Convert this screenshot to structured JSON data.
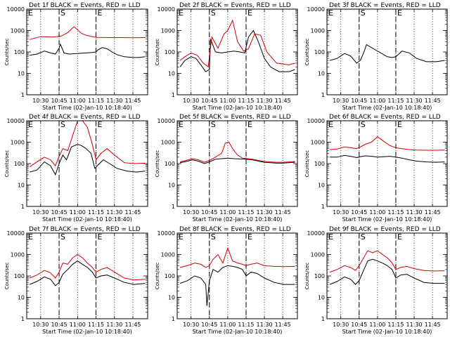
{
  "shared": {
    "xlabel": "Start Time (02-Jan-10 10:18:40)",
    "ylabel": "Counts/sec",
    "x_tick_labels": [
      "10:30",
      "10:45",
      "11:00",
      "11:15",
      "11:30",
      "11:45"
    ],
    "y_tick_labels": [
      "1",
      "10",
      "100",
      "1000",
      "10000"
    ],
    "marker_S": "S",
    "marker_E": "E",
    "series_colors": {
      "events": "#000000",
      "lld": "#d40000"
    }
  },
  "chart_data": [
    {
      "type": "line",
      "title": "Det 1f BLACK = Events, RED = LLD",
      "xlim": [
        "10:18:40",
        "11:57:00"
      ],
      "ylim": [
        1,
        10000
      ],
      "yscale": "log",
      "markers": {
        "S": "10:45",
        "E": "11:15"
      },
      "series": [
        {
          "color": "#000000",
          "x": [
            "10:21",
            "10:27",
            "10:33",
            "10:38",
            "10:42",
            "10:45",
            "10:46",
            "10:49",
            "10:53",
            "11:00",
            "11:07",
            "11:12",
            "11:15",
            "11:17",
            "11:20",
            "11:24",
            "11:28",
            "11:32",
            "11:38",
            "11:45",
            "11:50",
            "11:55"
          ],
          "values": [
            70,
            80,
            110,
            90,
            80,
            150,
            230,
            90,
            80,
            85,
            90,
            95,
            100,
            130,
            160,
            140,
            100,
            75,
            60,
            55,
            55,
            60
          ]
        },
        {
          "color": "#d40000",
          "x": [
            "10:21",
            "10:30",
            "10:40",
            "10:45",
            "10:47",
            "10:52",
            "10:57",
            "11:00",
            "11:03",
            "11:07",
            "11:12",
            "11:16",
            "11:25",
            "11:35",
            "11:45",
            "11:55"
          ],
          "values": [
            380,
            520,
            500,
            540,
            560,
            800,
            1500,
            1100,
            750,
            600,
            520,
            480,
            470,
            470,
            460,
            470
          ]
        }
      ]
    },
    {
      "type": "line",
      "title": "Det 2f BLACK = Events, RED = LLD",
      "xlim": [
        "10:18:40",
        "11:57:00"
      ],
      "ylim": [
        1,
        10000
      ],
      "yscale": "log",
      "markers": {
        "S": "10:45",
        "E": "11:15"
      },
      "series": [
        {
          "color": "#000000",
          "x": [
            "10:21",
            "10:25",
            "10:30",
            "10:34",
            "10:38",
            "10:42",
            "10:45",
            "10:46",
            "10:50",
            "10:55",
            "11:00",
            "11:05",
            "11:10",
            "11:14",
            "11:17",
            "11:21",
            "11:25",
            "11:30",
            "11:35",
            "11:42",
            "11:50",
            "11:55"
          ],
          "values": [
            20,
            40,
            60,
            50,
            25,
            12,
            15,
            400,
            100,
            90,
            100,
            110,
            100,
            90,
            500,
            1000,
            300,
            50,
            20,
            12,
            12,
            15
          ]
        },
        {
          "color": "#d40000",
          "x": [
            "10:21",
            "10:25",
            "10:30",
            "10:35",
            "10:40",
            "10:44",
            "10:47",
            "10:52",
            "10:57",
            "11:00",
            "11:04",
            "11:08",
            "11:13",
            "11:17",
            "11:22",
            "11:27",
            "11:32",
            "11:40",
            "11:50",
            "11:55"
          ],
          "values": [
            40,
            60,
            90,
            70,
            30,
            20,
            500,
            150,
            700,
            1000,
            3000,
            300,
            110,
            140,
            700,
            600,
            100,
            30,
            25,
            30
          ]
        }
      ]
    },
    {
      "type": "line",
      "title": "Det 3f BLACK = Events, RED = LLD",
      "xlim": [
        "10:18:40",
        "11:57:00"
      ],
      "ylim": [
        1,
        10000
      ],
      "yscale": "log",
      "markers": {
        "S": "10:45",
        "E": "11:15"
      },
      "series": [
        {
          "color": "#000000",
          "x": [
            "10:21",
            "10:27",
            "10:33",
            "10:38",
            "10:43",
            "10:46",
            "10:49",
            "10:51",
            "11:08",
            "11:12",
            "11:15",
            "11:20",
            "11:26",
            "11:32",
            "11:40",
            "11:48",
            "11:55"
          ],
          "values": [
            40,
            50,
            85,
            65,
            30,
            40,
            100,
            220,
            60,
            55,
            60,
            110,
            90,
            50,
            35,
            35,
            40
          ]
        }
      ]
    },
    {
      "type": "line",
      "title": "Det 4f BLACK = Events, RED = LLD",
      "xlim": [
        "10:18:40",
        "11:57:00"
      ],
      "ylim": [
        1,
        10000
      ],
      "yscale": "log",
      "markers": {
        "S": "10:45",
        "E": "11:15"
      },
      "series": [
        {
          "color": "#000000",
          "x": [
            "10:21",
            "10:27",
            "10:33",
            "10:38",
            "10:42",
            "10:45",
            "10:48",
            "10:51",
            "10:55",
            "11:00",
            "11:03",
            "11:07",
            "11:11",
            "11:14",
            "11:17",
            "11:21",
            "11:26",
            "11:32",
            "11:40",
            "11:48",
            "11:55"
          ],
          "values": [
            40,
            50,
            120,
            80,
            30,
            100,
            250,
            150,
            600,
            800,
            700,
            500,
            300,
            60,
            90,
            150,
            100,
            60,
            45,
            40,
            45
          ]
        },
        {
          "color": "#d40000",
          "x": [
            "10:21",
            "10:27",
            "10:33",
            "10:38",
            "10:42",
            "10:45",
            "10:48",
            "10:52",
            "10:56",
            "11:00",
            "11:04",
            "11:08",
            "11:12",
            "11:15",
            "11:19",
            "11:24",
            "11:30",
            "11:38",
            "11:46",
            "11:55"
          ],
          "values": [
            70,
            120,
            200,
            150,
            80,
            220,
            500,
            400,
            2000,
            10000,
            10000,
            5000,
            800,
            150,
            300,
            500,
            250,
            110,
            100,
            105
          ]
        }
      ]
    },
    {
      "type": "line",
      "title": "Det 5f BLACK = Events, RED = LLD",
      "xlim": [
        "10:18:40",
        "11:57:00"
      ],
      "ylim": [
        1,
        10000
      ],
      "yscale": "log",
      "markers": {
        "S": "10:45",
        "E": "11:15"
      },
      "series": [
        {
          "color": "#000000",
          "x": [
            "10:21",
            "10:26",
            "10:31",
            "10:36",
            "10:41",
            "10:45",
            "10:50",
            "10:55",
            "11:00",
            "11:05",
            "11:10",
            "11:15",
            "11:20",
            "11:25",
            "11:30",
            "11:35",
            "11:40",
            "11:45",
            "11:50",
            "11:55"
          ],
          "values": [
            110,
            125,
            150,
            130,
            100,
            120,
            160,
            170,
            180,
            170,
            165,
            160,
            150,
            130,
            115,
            110,
            105,
            105,
            110,
            115
          ]
        },
        {
          "color": "#d40000",
          "x": [
            "10:21",
            "10:26",
            "10:31",
            "10:36",
            "10:41",
            "10:45",
            "10:50",
            "10:55",
            "10:58",
            "11:01",
            "11:04",
            "11:08",
            "11:12",
            "11:16",
            "11:20",
            "11:25",
            "11:30",
            "11:35",
            "11:40",
            "11:45",
            "11:50",
            "11:55"
          ],
          "values": [
            120,
            140,
            170,
            150,
            115,
            140,
            200,
            300,
            900,
            1000,
            500,
            250,
            180,
            170,
            160,
            140,
            125,
            120,
            115,
            115,
            120,
            125
          ]
        }
      ]
    },
    {
      "type": "line",
      "title": "Det 6f BLACK = Events, RED = LLD",
      "xlim": [
        "10:18:40",
        "11:57:00"
      ],
      "ylim": [
        1,
        10000
      ],
      "yscale": "log",
      "markers": {
        "S": "10:45",
        "E": "11:15"
      },
      "series": [
        {
          "color": "#000000",
          "x": [
            "10:21",
            "10:27",
            "10:33",
            "10:38",
            "10:43",
            "10:46",
            "10:50",
            "10:55",
            "11:00",
            "11:05",
            "11:10",
            "11:15",
            "11:20",
            "11:26",
            "11:32",
            "11:40",
            "11:48",
            "11:55"
          ],
          "values": [
            200,
            200,
            240,
            220,
            190,
            210,
            230,
            220,
            200,
            210,
            220,
            200,
            180,
            150,
            130,
            120,
            115,
            120
          ]
        },
        {
          "color": "#d40000",
          "x": [
            "10:21",
            "10:27",
            "10:33",
            "10:38",
            "10:43",
            "10:46",
            "10:50",
            "10:55",
            "11:00",
            "11:05",
            "11:10",
            "11:15",
            "11:20",
            "11:26",
            "11:32",
            "11:40",
            "11:48",
            "11:55"
          ],
          "values": [
            450,
            480,
            600,
            550,
            500,
            600,
            800,
            1000,
            1800,
            1100,
            700,
            550,
            500,
            450,
            430,
            420,
            420,
            430
          ]
        }
      ]
    },
    {
      "type": "line",
      "title": "Det 7f BLACK = Events, RED = LLD",
      "xlim": [
        "10:18:40",
        "11:57:00"
      ],
      "ylim": [
        1,
        10000
      ],
      "yscale": "log",
      "markers": {
        "S": "10:45",
        "E": "11:15"
      },
      "series": [
        {
          "color": "#000000",
          "x": [
            "10:21",
            "10:27",
            "10:33",
            "10:38",
            "10:42",
            "10:45",
            "10:48",
            "10:52",
            "10:56",
            "11:00",
            "11:04",
            "11:08",
            "11:12",
            "11:15",
            "11:19",
            "11:24",
            "11:30",
            "11:38",
            "11:46",
            "11:55"
          ],
          "values": [
            40,
            55,
            90,
            70,
            35,
            50,
            120,
            200,
            350,
            500,
            350,
            250,
            150,
            80,
            100,
            110,
            80,
            50,
            40,
            45
          ]
        },
        {
          "color": "#d40000",
          "x": [
            "10:21",
            "10:27",
            "10:33",
            "10:38",
            "10:42",
            "10:45",
            "10:48",
            "10:52",
            "10:56",
            "11:00",
            "11:04",
            "11:08",
            "11:12",
            "11:15",
            "11:19",
            "11:24",
            "11:30",
            "11:38",
            "11:46",
            "11:55"
          ],
          "values": [
            80,
            110,
            180,
            140,
            80,
            150,
            400,
            350,
            700,
            1000,
            700,
            400,
            250,
            150,
            200,
            250,
            150,
            80,
            65,
            70
          ]
        }
      ]
    },
    {
      "type": "line",
      "title": "Det 8f BLACK = Events, RED = LLD",
      "xlim": [
        "10:18:40",
        "11:57:00"
      ],
      "ylim": [
        1,
        10000
      ],
      "yscale": "log",
      "markers": {
        "S": "10:45",
        "E": "11:15"
      },
      "series": [
        {
          "color": "#000000",
          "x": [
            "10:21",
            "10:27",
            "10:33",
            "10:38",
            "10:42",
            "10:43",
            "10:45",
            "10:48",
            "10:52",
            "10:56",
            "11:00",
            "11:04",
            "11:08",
            "11:12",
            "11:15",
            "11:19",
            "11:24",
            "11:30",
            "11:38",
            "11:46",
            "11:55"
          ],
          "values": [
            45,
            60,
            100,
            80,
            40,
            4,
            60,
            200,
            150,
            250,
            300,
            280,
            250,
            200,
            100,
            150,
            130,
            80,
            50,
            40,
            40
          ]
        },
        {
          "color": "#d40000",
          "x": [
            "10:21",
            "10:27",
            "10:33",
            "10:38",
            "10:42",
            "10:45",
            "10:48",
            "10:52",
            "10:56",
            "11:00",
            "11:04",
            "11:08",
            "11:12",
            "11:15",
            "11:19",
            "11:24",
            "11:30",
            "11:38",
            "11:46",
            "11:55"
          ],
          "values": [
            250,
            300,
            400,
            350,
            250,
            300,
            600,
            1000,
            400,
            2000,
            500,
            400,
            350,
            300,
            350,
            400,
            300,
            280,
            270,
            280
          ]
        }
      ]
    },
    {
      "type": "line",
      "title": "Det 9f BLACK = Events, RED = LLD",
      "xlim": [
        "10:18:40",
        "11:57:00"
      ],
      "ylim": [
        1,
        10000
      ],
      "yscale": "log",
      "markers": {
        "S": "10:45",
        "E": "11:15"
      },
      "series": [
        {
          "color": "#000000",
          "x": [
            "10:21",
            "10:27",
            "10:33",
            "10:38",
            "10:42",
            "10:45",
            "10:48",
            "10:52",
            "10:56",
            "11:00",
            "11:04",
            "11:08",
            "11:12",
            "11:15",
            "11:19",
            "11:24",
            "11:30",
            "11:38",
            "11:46",
            "11:55"
          ],
          "values": [
            40,
            55,
            90,
            70,
            40,
            60,
            150,
            500,
            600,
            500,
            400,
            300,
            200,
            80,
            110,
            120,
            80,
            50,
            45,
            45
          ]
        },
        {
          "color": "#d40000",
          "x": [
            "10:21",
            "10:27",
            "10:33",
            "10:38",
            "10:42",
            "10:45",
            "10:48",
            "10:52",
            "10:56",
            "11:00",
            "11:04",
            "11:08",
            "11:12",
            "11:15",
            "11:19",
            "11:24",
            "11:30",
            "11:38",
            "11:46",
            "11:55"
          ],
          "values": [
            150,
            200,
            300,
            250,
            180,
            300,
            600,
            1500,
            1200,
            1500,
            1000,
            700,
            400,
            200,
            250,
            280,
            220,
            180,
            170,
            175
          ]
        }
      ]
    }
  ]
}
